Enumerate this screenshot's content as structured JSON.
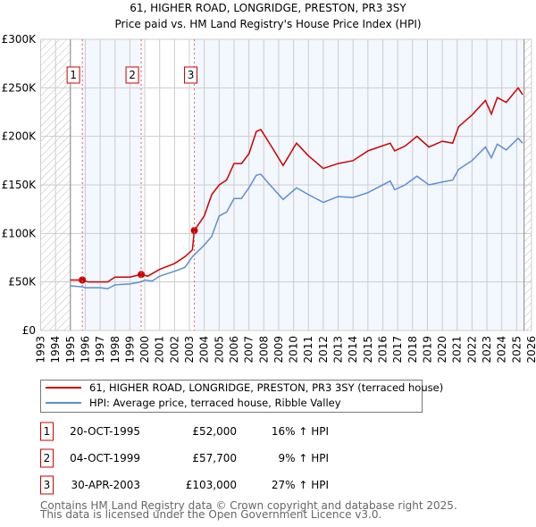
{
  "chart_data": {
    "type": "line",
    "title": "61, HIGHER ROAD, LONGRIDGE, PRESTON, PR3 3SY",
    "subtitle": "Price paid vs. HM Land Registry's House Price Index (HPI)",
    "xlim": [
      1993,
      2026
    ],
    "ylim": [
      0,
      300000
    ],
    "y_ticks": [
      {
        "v": 0,
        "label": "£0"
      },
      {
        "v": 50000,
        "label": "£50K"
      },
      {
        "v": 100000,
        "label": "£100K"
      },
      {
        "v": 150000,
        "label": "£150K"
      },
      {
        "v": 200000,
        "label": "£200K"
      },
      {
        "v": 250000,
        "label": "£250K"
      },
      {
        "v": 300000,
        "label": "£300K"
      }
    ],
    "x_ticks": [
      "1993",
      "1994",
      "1995",
      "1996",
      "1997",
      "1998",
      "1999",
      "2000",
      "2001",
      "2002",
      "2003",
      "2004",
      "2005",
      "2006",
      "2007",
      "2008",
      "2009",
      "2010",
      "2011",
      "2012",
      "2013",
      "2014",
      "2015",
      "2016",
      "2017",
      "2018",
      "2019",
      "2020",
      "2021",
      "2022",
      "2023",
      "2024",
      "2025",
      "2026"
    ],
    "grid": true,
    "hatched_ranges": [
      [
        1993,
        1995
      ],
      [
        2025.5,
        2026
      ]
    ],
    "series": [
      {
        "name": "61, HIGHER ROAD, LONGRIDGE, PRESTON, PR3 3SY (terraced house)",
        "color": "#cc0000",
        "x": [
          1995,
          1995.8,
          1996.2,
          1997.5,
          1998,
          1999,
          1999.75,
          2000.2,
          2001,
          2002,
          2002.7,
          2003.2,
          2003.33,
          2004,
          2004.5,
          2005,
          2005.5,
          2006,
          2006.5,
          2007,
          2007.5,
          2007.8,
          2008.3,
          2009.3,
          2010.2,
          2011,
          2012,
          2013,
          2014,
          2015,
          2016.5,
          2016.8,
          2017.5,
          2018.3,
          2019.1,
          2020,
          2020.7,
          2021.1,
          2022,
          2022.9,
          2023.3,
          2023.7,
          2024.3,
          2025.1,
          2025.4
        ],
        "y": [
          52000,
          52000,
          50000,
          50000,
          55000,
          55000,
          57700,
          56000,
          63000,
          69000,
          76000,
          83000,
          103000,
          118000,
          140000,
          150000,
          155000,
          172000,
          172000,
          182000,
          205000,
          207000,
          195000,
          170000,
          193000,
          180000,
          167000,
          172000,
          175000,
          185000,
          193000,
          185000,
          190000,
          200000,
          189000,
          195000,
          193000,
          210000,
          222000,
          237000,
          223000,
          240000,
          235000,
          250000,
          243000
        ]
      },
      {
        "name": "HPI: Average price, terraced house, Ribble Valley",
        "color": "#5b8fd4",
        "x": [
          1995,
          1995.8,
          1996,
          1997,
          1997.5,
          1998,
          1999,
          1999.75,
          2000,
          2000.5,
          2001,
          2002,
          2002.7,
          2003.2,
          2004,
          2004.5,
          2005,
          2005.5,
          2006,
          2006.5,
          2007,
          2007.5,
          2007.8,
          2008.3,
          2009.3,
          2010.2,
          2011,
          2012,
          2013,
          2014,
          2015,
          2016.5,
          2016.8,
          2017.5,
          2018.3,
          2019.1,
          2020,
          2020.7,
          2021.1,
          2022,
          2022.9,
          2023.3,
          2023.7,
          2024.3,
          2025.1,
          2025.4
        ],
        "y": [
          46000,
          45000,
          44000,
          44000,
          43000,
          47000,
          48000,
          50000,
          52000,
          51000,
          56000,
          61000,
          65000,
          76000,
          88000,
          97000,
          118000,
          122000,
          136000,
          136000,
          147000,
          160000,
          161000,
          152000,
          135000,
          147000,
          140000,
          132000,
          138000,
          137000,
          142000,
          154000,
          145000,
          150000,
          159000,
          150000,
          153000,
          155000,
          166000,
          175000,
          189000,
          178000,
          192000,
          186000,
          198000,
          193000
        ]
      }
    ],
    "sales": [
      {
        "n": "1",
        "x": 1995.8,
        "y": 52000,
        "date": "20-OCT-1995",
        "price": "£52,000",
        "hpi": "16% ↑ HPI"
      },
      {
        "n": "2",
        "x": 1999.76,
        "y": 57700,
        "date": "04-OCT-1999",
        "price": "£57,700",
        "hpi": "9% ↑ HPI"
      },
      {
        "n": "3",
        "x": 2003.33,
        "y": 103000,
        "date": "30-APR-2003",
        "price": "£103,000",
        "hpi": "27% ↑ HPI"
      }
    ],
    "legend": [
      "61, HIGHER ROAD, LONGRIDGE, PRESTON, PR3 3SY (terraced house)",
      "HPI: Average price, terraced house, Ribble Valley"
    ]
  },
  "footer": [
    "Contains HM Land Registry data © Crown copyright and database right 2025.",
    "This data is licensed under the Open Government Licence v3.0."
  ]
}
